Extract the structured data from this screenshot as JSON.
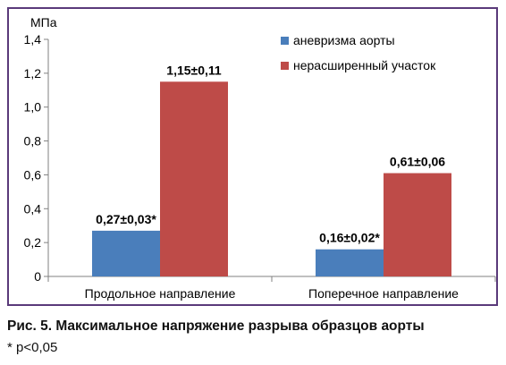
{
  "chart_data": {
    "type": "bar",
    "ylabel": "МПа",
    "ylim": [
      0,
      1.4
    ],
    "yticks": [
      "0",
      "0,2",
      "0,4",
      "0,6",
      "0,8",
      "1,0",
      "1,2",
      "1,4"
    ],
    "tick_step": 0.2,
    "categories": [
      "Продольное направление",
      "Поперечное направление"
    ],
    "series": [
      {
        "name": "аневризма аорты",
        "color": "#4a7ebb",
        "values": [
          0.27,
          0.16
        ],
        "labels": [
          "0,27±0,03*",
          "0,16±0,02*"
        ]
      },
      {
        "name": "нерасширенный участок",
        "color": "#be4b48",
        "values": [
          1.15,
          0.61
        ],
        "labels": [
          "1,15±0,11",
          "0,61±0,06"
        ]
      }
    ],
    "legend_position": "top-right",
    "grid": false
  },
  "caption": "Рис. 5. Максимальное напряжение разрыва образцов аорты",
  "note": "* p<0,05"
}
